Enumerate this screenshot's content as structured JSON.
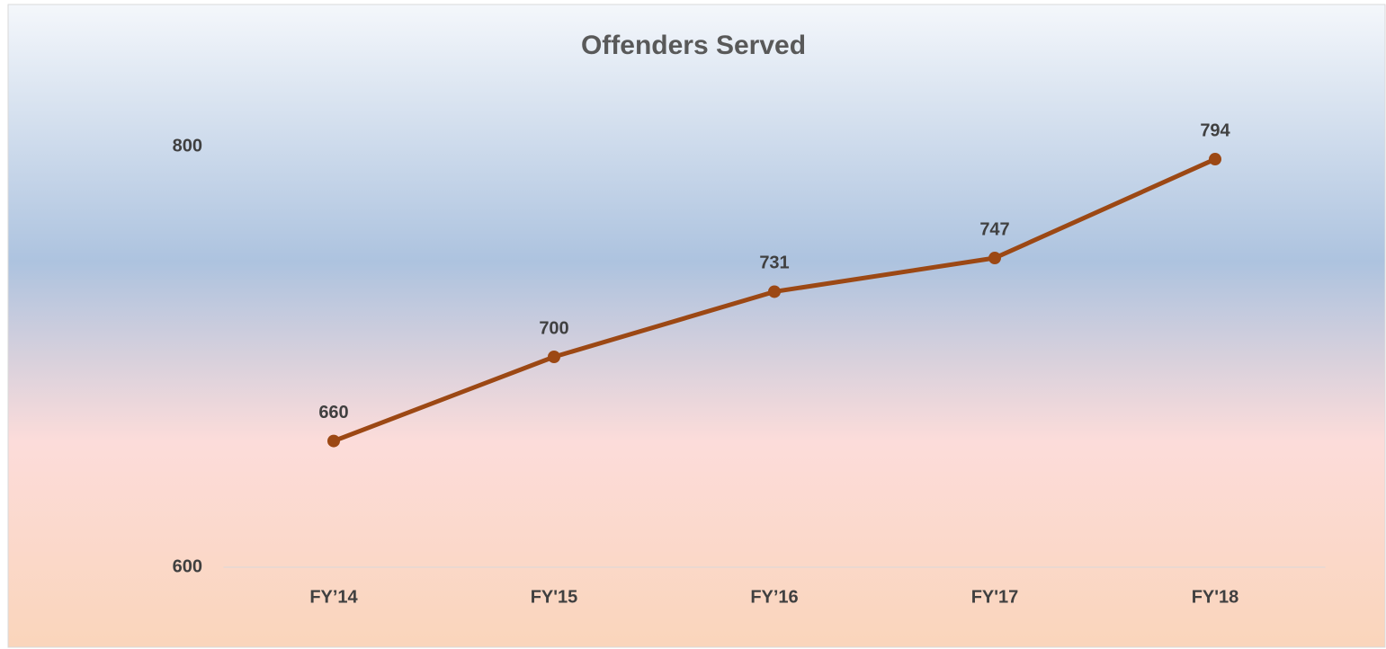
{
  "chart_data": {
    "type": "line",
    "title": "Offenders Served",
    "categories": [
      "FY’14",
      "FY'15",
      "FY’16",
      "FY'17",
      "FY'18"
    ],
    "series": [
      {
        "name": "Offenders Served",
        "color": "#9c4814",
        "values": [
          660,
          700,
          731,
          747,
          794
        ]
      }
    ],
    "ylim": [
      600,
      800
    ],
    "yticks": [
      600,
      800
    ],
    "grid": false
  }
}
